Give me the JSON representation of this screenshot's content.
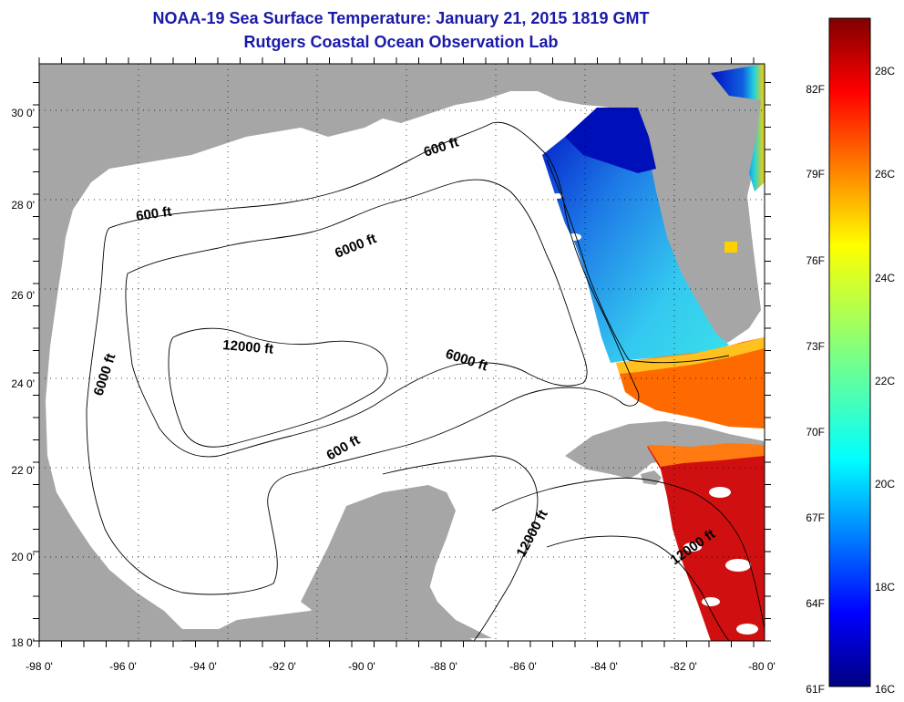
{
  "header": {
    "title": "NOAA-19 Sea Surface Temperature:  January 21, 2015 1819 GMT",
    "subtitle": "Rutgers Coastal Ocean Observation Lab"
  },
  "map": {
    "lon_labels": [
      "-98 0'",
      "-96 0'",
      "-94 0'",
      "-92 0'",
      "-90 0'",
      "-88 0'",
      "-86 0'",
      "-84 0'",
      "-82 0'",
      "-80 0'"
    ],
    "lat_labels": [
      "18 0'",
      "20 0'",
      "22 0'",
      "24 0'",
      "26 0'",
      "28 0'",
      "30 0'"
    ],
    "contour_labels": [
      "600 ft",
      "600 ft",
      "6000 ft",
      "6000 ft",
      "12000 ft",
      "6000 ft",
      "600 ft",
      "12000 ft",
      "12000 ft"
    ]
  },
  "colorbar": {
    "fahrenheit": [
      "82F",
      "79F",
      "76F",
      "73F",
      "70F",
      "67F",
      "64F",
      "61F"
    ],
    "celsius": [
      "28C",
      "26C",
      "24C",
      "22C",
      "20C",
      "18C",
      "16C"
    ]
  },
  "colors": {
    "title": "#1a1aa8",
    "land": "#a6a6a6",
    "ocean_no_data": "#ffffff"
  }
}
